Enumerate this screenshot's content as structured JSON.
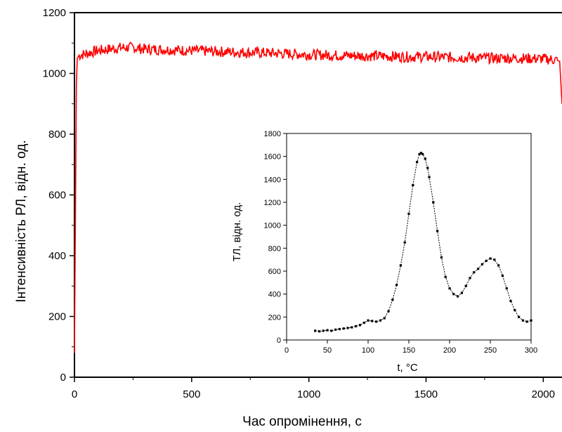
{
  "chart_data": [
    {
      "type": "line",
      "xlabel": "Час опромінення, с",
      "ylabel": "Інтенсивність РЛ, відн. од.",
      "xlim": [
        0,
        2080
      ],
      "ylim": [
        0,
        1200
      ],
      "x_ticks": [
        0,
        500,
        1000,
        1500,
        2000
      ],
      "y_ticks": [
        0,
        200,
        400,
        600,
        800,
        1000,
        1200
      ],
      "grid": false,
      "series": [
        {
          "color": "#ff0000",
          "x": [
            0,
            8,
            12,
            20,
            50,
            100,
            150,
            200,
            250,
            300,
            400,
            500,
            600,
            700,
            800,
            900,
            1000,
            1100,
            1200,
            1300,
            1400,
            1500,
            1600,
            1700,
            1800,
            1900,
            2000,
            2050,
            2070,
            2080
          ],
          "y": [
            80,
            960,
            1050,
            1060,
            1065,
            1075,
            1080,
            1085,
            1085,
            1080,
            1078,
            1075,
            1072,
            1070,
            1068,
            1065,
            1062,
            1060,
            1058,
            1057,
            1055,
            1055,
            1053,
            1052,
            1050,
            1050,
            1048,
            1045,
            1040,
            900
          ]
        }
      ]
    },
    {
      "type": "scatter",
      "xlabel": "t, °C",
      "ylabel": "ТЛ, відн. од.",
      "xlim": [
        0,
        300
      ],
      "ylim": [
        0,
        1800
      ],
      "x_ticks": [
        0,
        50,
        100,
        150,
        200,
        250,
        300
      ],
      "y_ticks": [
        0,
        200,
        400,
        600,
        800,
        1000,
        1200,
        1400,
        1600,
        1800
      ],
      "grid": false,
      "series": [
        {
          "color": "#000000",
          "x": [
            35,
            40,
            45,
            50,
            55,
            60,
            65,
            70,
            75,
            80,
            85,
            90,
            95,
            100,
            105,
            110,
            115,
            120,
            125,
            130,
            135,
            140,
            145,
            150,
            155,
            160,
            163,
            165,
            167,
            170,
            173,
            175,
            180,
            185,
            190,
            195,
            200,
            205,
            210,
            215,
            220,
            225,
            230,
            235,
            240,
            245,
            250,
            255,
            260,
            265,
            270,
            275,
            280,
            285,
            290,
            295,
            300
          ],
          "y": [
            80,
            75,
            80,
            85,
            80,
            90,
            95,
            100,
            105,
            110,
            120,
            130,
            150,
            170,
            165,
            160,
            170,
            190,
            250,
            350,
            480,
            650,
            850,
            1100,
            1350,
            1550,
            1620,
            1630,
            1620,
            1580,
            1500,
            1420,
            1200,
            950,
            720,
            550,
            450,
            400,
            380,
            410,
            470,
            540,
            590,
            620,
            660,
            690,
            710,
            700,
            650,
            560,
            450,
            340,
            260,
            200,
            170,
            160,
            170
          ]
        }
      ]
    }
  ]
}
